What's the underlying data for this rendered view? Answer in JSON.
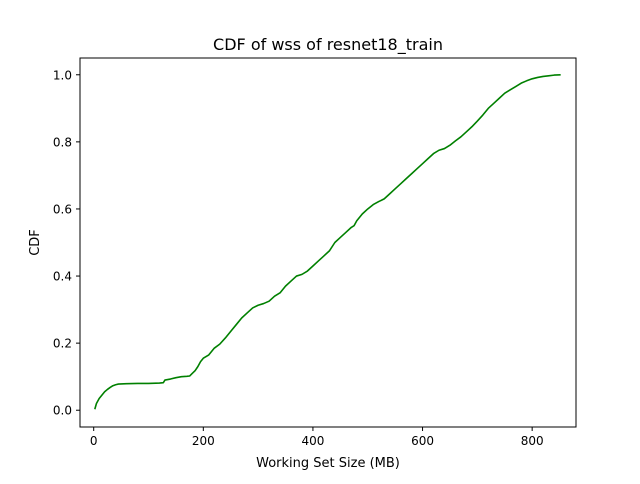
{
  "chart_data": {
    "type": "line",
    "title": "CDF of wss of resnet18_train",
    "xlabel": "Working Set Size (MB)",
    "ylabel": "CDF",
    "xlim": [
      -25,
      880
    ],
    "ylim": [
      -0.05,
      1.05
    ],
    "x_ticks": [
      0,
      200,
      400,
      600,
      800
    ],
    "y_ticks": [
      0.0,
      0.2,
      0.4,
      0.6,
      0.8,
      1.0
    ],
    "x_tick_labels": [
      "0",
      "200",
      "400",
      "600",
      "800"
    ],
    "y_tick_labels": [
      "0.0",
      "0.2",
      "0.4",
      "0.6",
      "0.8",
      "1.0"
    ],
    "grid": false,
    "series": [
      {
        "color": "#008000",
        "x": [
          2,
          5,
          10,
          15,
          20,
          25,
          30,
          35,
          40,
          45,
          60,
          80,
          100,
          120,
          127,
          130,
          140,
          150,
          160,
          170,
          175,
          180,
          185,
          190,
          195,
          200,
          210,
          220,
          230,
          240,
          250,
          260,
          270,
          280,
          290,
          300,
          310,
          320,
          330,
          340,
          350,
          360,
          370,
          380,
          390,
          400,
          410,
          420,
          430,
          440,
          450,
          460,
          470,
          475,
          480,
          490,
          500,
          510,
          520,
          530,
          540,
          550,
          560,
          570,
          580,
          590,
          600,
          610,
          620,
          630,
          640,
          650,
          660,
          670,
          680,
          690,
          700,
          710,
          720,
          730,
          740,
          750,
          760,
          770,
          780,
          790,
          800,
          810,
          820,
          830,
          840,
          852
        ],
        "y": [
          0.003,
          0.02,
          0.035,
          0.045,
          0.055,
          0.062,
          0.068,
          0.073,
          0.076,
          0.078,
          0.079,
          0.08,
          0.08,
          0.081,
          0.082,
          0.09,
          0.093,
          0.097,
          0.1,
          0.101,
          0.102,
          0.11,
          0.118,
          0.13,
          0.145,
          0.155,
          0.165,
          0.185,
          0.197,
          0.215,
          0.235,
          0.255,
          0.275,
          0.29,
          0.305,
          0.313,
          0.318,
          0.325,
          0.34,
          0.35,
          0.37,
          0.385,
          0.4,
          0.405,
          0.415,
          0.43,
          0.445,
          0.46,
          0.475,
          0.5,
          0.515,
          0.53,
          0.545,
          0.55,
          0.565,
          0.585,
          0.6,
          0.613,
          0.622,
          0.63,
          0.645,
          0.66,
          0.675,
          0.69,
          0.705,
          0.72,
          0.735,
          0.75,
          0.765,
          0.775,
          0.78,
          0.79,
          0.803,
          0.815,
          0.83,
          0.845,
          0.862,
          0.88,
          0.9,
          0.915,
          0.93,
          0.945,
          0.955,
          0.965,
          0.975,
          0.982,
          0.988,
          0.992,
          0.995,
          0.997,
          0.999,
          1.0
        ]
      }
    ]
  }
}
